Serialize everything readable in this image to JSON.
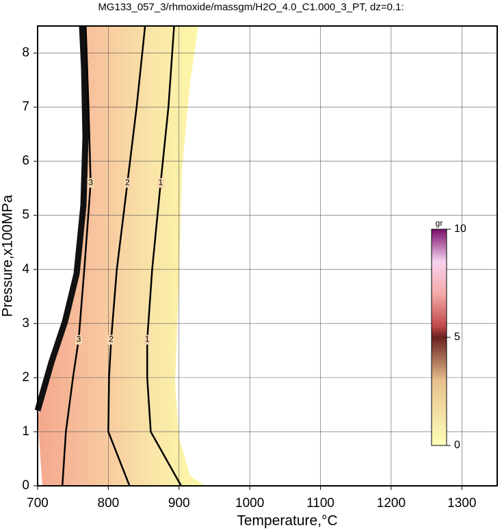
{
  "chart_data": {
    "type": "contour",
    "title": "MG133_057_3/rhmoxide/massgm/H2O_4.0_C1.000_3_PT, dz=0.1:",
    "xlabel": "Temperature,°C",
    "ylabel": "Pressure,x100MPa",
    "xlim": [
      700,
      1350
    ],
    "ylim": [
      0,
      8.5
    ],
    "xticks": [
      700,
      800,
      900,
      1000,
      1100,
      1200,
      1300
    ],
    "yticks": [
      0,
      1,
      2,
      3,
      4,
      5,
      6,
      7,
      8
    ],
    "grid": true,
    "series": [
      {
        "level": 1,
        "color": "#000000",
        "x": [
          903,
          860,
          855,
          855,
          862,
          874,
          885,
          893
        ],
        "y": [
          0,
          1,
          2,
          2.7,
          4,
          5.6,
          7,
          8.5
        ]
      },
      {
        "level": 2,
        "color": "#000000",
        "x": [
          830,
          800,
          801,
          804,
          812,
          827,
          840,
          852
        ],
        "y": [
          0,
          1,
          2,
          2.7,
          4,
          5.6,
          7,
          8.5
        ]
      },
      {
        "level": 3,
        "color": "#000000",
        "x": [
          735,
          740,
          750,
          758,
          766,
          775,
          772,
          768
        ],
        "y": [
          0,
          1,
          2,
          2.7,
          4,
          5.6,
          7,
          8.5
        ]
      }
    ],
    "colorbar": {
      "label": "gr",
      "lim": [
        0,
        10
      ],
      "ticks": [
        0,
        5,
        10
      ]
    }
  }
}
